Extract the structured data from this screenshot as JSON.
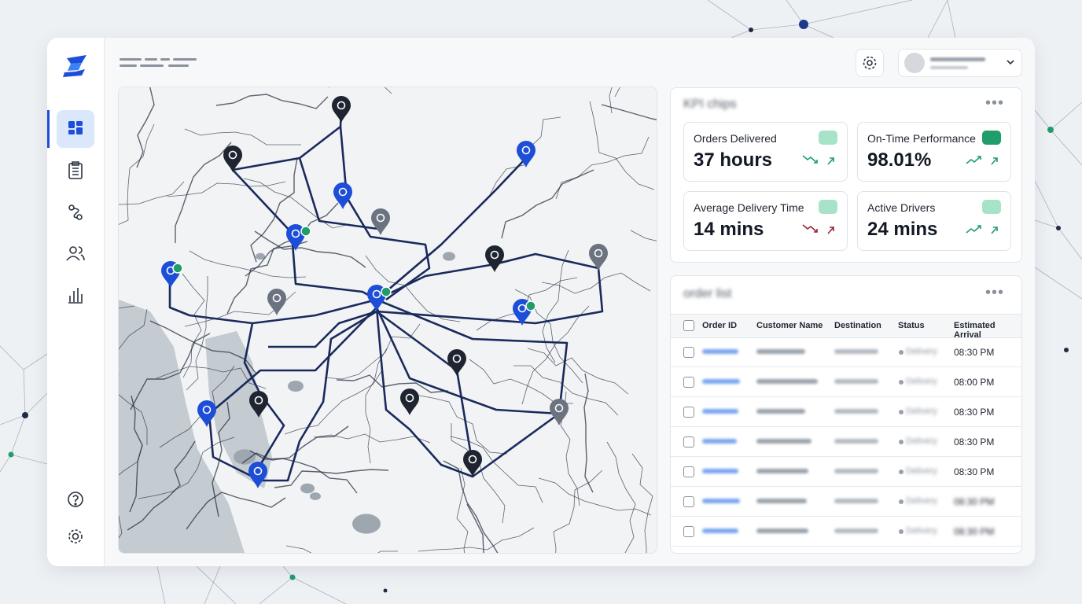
{
  "kpi_section": {
    "title": "KPI chips",
    "cards": [
      {
        "label": "Orders Delivered",
        "value": "37 hours"
      },
      {
        "label": "On-Time Performance",
        "value": "98.01%"
      },
      {
        "label": "Average Delivery Time",
        "value": "14 mins"
      },
      {
        "label": "Active Drivers",
        "value": "24 mins"
      }
    ]
  },
  "order_list": {
    "title": "order list",
    "columns": [
      "Order ID",
      "Customer Name",
      "Destination",
      "Status",
      "Estimated Arrival"
    ],
    "status": "Delivery",
    "arrivals": [
      "08:30 PM",
      "08:00 PM",
      "08:30 PM",
      "08:30 PM",
      "08:30 PM",
      "08:30 PM",
      "08:30 PM"
    ]
  }
}
